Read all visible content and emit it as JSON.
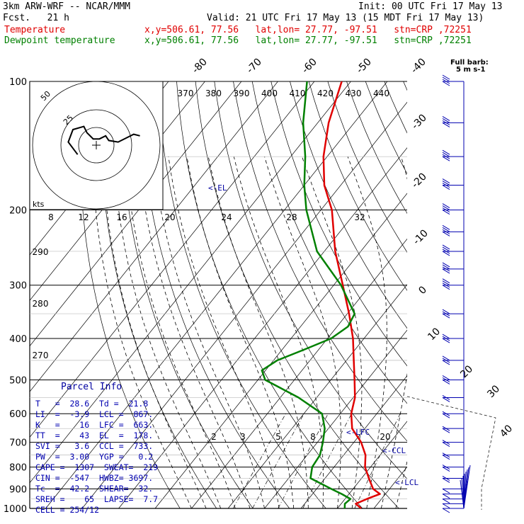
{
  "header": {
    "model_line": "3km ARW-WRF -- NCAR/MMM",
    "init_line": "Init: 00 UTC Fri 17 May 13",
    "fcst_line": "Fcst.   21 h",
    "valid_line": "Valid: 21 UTC Fri 17 May 13 (15 MDT Fri 17 May 13)",
    "temp_label": "Temperature",
    "dew_label": "Dewpoint temperature",
    "loc_info": "x,y=506.61, 77.56   lat,lon= 27.77, -97.51   stn=CRP ,72251"
  },
  "colors": {
    "temperature": "#e00000",
    "dewpoint": "#008000",
    "text": "#0000b0"
  },
  "barb_legend": {
    "line1": "Full barb:",
    "line2": "5 m s-1"
  },
  "hodograph": {
    "units": "kts",
    "ring_labels": [
      "50",
      "25"
    ]
  },
  "parcel_info": {
    "title": "Parcel Info",
    "rows": [
      "T   =  28.6  Td =  21.8",
      "LI  =  -3.9  LCL =  867.",
      "K   =    16  LFC =  663.",
      "TT  =    43  EL  =  178.",
      "SVI =   3.6  CCL =  733.",
      "PW  =  3.00  YGP =   0.2",
      "CAPE =  1307  SWEAT=  219",
      "CIN =  -547  HWBZ= 3697.",
      "Tc  =  42.2  SHEAR=  32.",
      "SREH =    65  LAPSE=  7.7",
      "CELL = 254/12"
    ]
  },
  "level_labels": {
    "el": "<-EL",
    "lfc": "<-LFC",
    "ccl": "<-CCL",
    "lcl": "<-LCL"
  },
  "chart_data": {
    "type": "line",
    "title": "",
    "y_axis": {
      "scale": "log",
      "ylim": [
        1000,
        100
      ],
      "ticks": [
        "100",
        "200",
        "300",
        "400",
        "500",
        "600",
        "700",
        "800",
        "900",
        "1000"
      ]
    },
    "isotherm_labels": [
      "-80",
      "-70",
      "-60",
      "-50",
      "-40",
      "-30",
      "-20",
      "-10",
      "0",
      "10",
      "20",
      "30",
      "40"
    ],
    "dry_adiabat_labels": [
      "370",
      "380",
      "390",
      "400",
      "410",
      "420",
      "430",
      "440"
    ],
    "moist_labels_top": [
      "8",
      "12",
      "16",
      "20",
      "24",
      "28",
      "32"
    ],
    "moist_labels_left": [
      "290",
      "280",
      "270"
    ],
    "mixing_ratio_labels": [
      "2",
      "3",
      "5",
      "8",
      "20"
    ],
    "series": [
      {
        "name": "Temperature",
        "points": [
          [
            1000,
            26.5
          ],
          [
            975,
            24.0
          ],
          [
            950,
            26.0
          ],
          [
            925,
            28.5
          ],
          [
            900,
            25.5
          ],
          [
            850,
            22.0
          ],
          [
            800,
            18.5
          ],
          [
            750,
            16.0
          ],
          [
            700,
            12.0
          ],
          [
            650,
            6.5
          ],
          [
            600,
            3.0
          ],
          [
            550,
            0.5
          ],
          [
            500,
            -3.5
          ],
          [
            450,
            -8.0
          ],
          [
            400,
            -13.0
          ],
          [
            350,
            -19.5
          ],
          [
            300,
            -27.5
          ],
          [
            250,
            -37.0
          ],
          [
            200,
            -47.0
          ],
          [
            175,
            -54.5
          ],
          [
            150,
            -61.0
          ],
          [
            125,
            -67.0
          ],
          [
            100,
            -72.5
          ]
        ]
      },
      {
        "name": "Dewpoint temperature",
        "points": [
          [
            1000,
            22.0
          ],
          [
            975,
            21.0
          ],
          [
            950,
            21.5
          ],
          [
            925,
            18.0
          ],
          [
            900,
            14.0
          ],
          [
            850,
            6.0
          ],
          [
            800,
            4.0
          ],
          [
            750,
            3.5
          ],
          [
            700,
            1.5
          ],
          [
            650,
            -1.0
          ],
          [
            600,
            -5.0
          ],
          [
            550,
            -15.0
          ],
          [
            500,
            -28.0
          ],
          [
            475,
            -31.0
          ],
          [
            450,
            -29.0
          ],
          [
            425,
            -24.0
          ],
          [
            400,
            -19.0
          ],
          [
            375,
            -17.0
          ],
          [
            350,
            -18.0
          ],
          [
            300,
            -28.0
          ],
          [
            250,
            -42.0
          ],
          [
            200,
            -54.0
          ],
          [
            175,
            -60.0
          ],
          [
            150,
            -66.0
          ],
          [
            125,
            -74.0
          ],
          [
            100,
            -82.0
          ]
        ]
      }
    ],
    "wind_barbs_p": [
      1000,
      975,
      950,
      925,
      900,
      850,
      800,
      750,
      700,
      650,
      600,
      550,
      500,
      450,
      400,
      350,
      300,
      275,
      250,
      225,
      200,
      175,
      150,
      125,
      100
    ],
    "hodograph_trace": [
      [
        0,
        0
      ],
      [
        -6,
        8
      ],
      [
        -3,
        16
      ],
      [
        4,
        18
      ],
      [
        6,
        14
      ],
      [
        10,
        10
      ],
      [
        14,
        10
      ],
      [
        18,
        12
      ],
      [
        20,
        9
      ],
      [
        26,
        8
      ],
      [
        32,
        11
      ],
      [
        36,
        13
      ],
      [
        40,
        12
      ]
    ]
  }
}
